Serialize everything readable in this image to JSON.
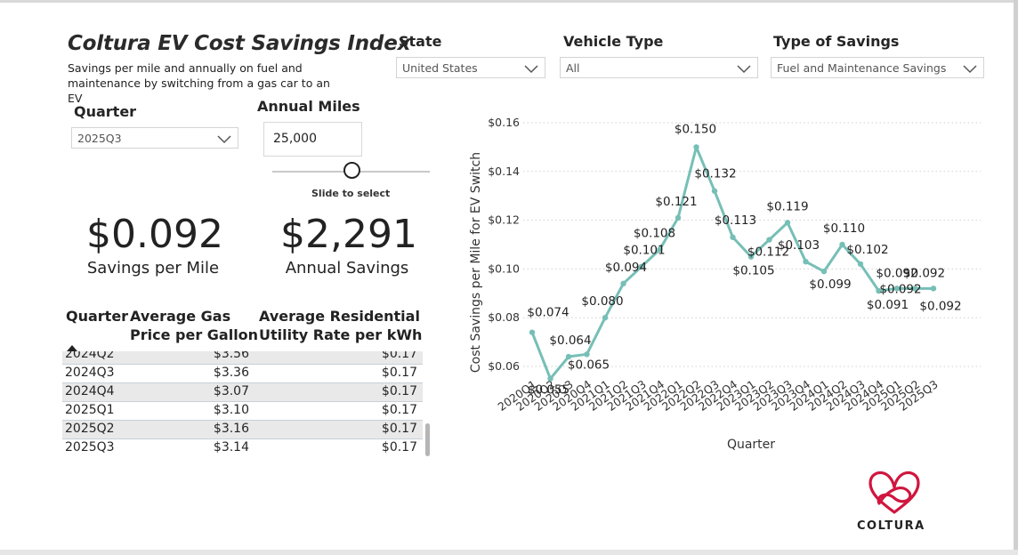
{
  "header": {
    "title": "Coltura EV Cost Savings Index",
    "subtitle": "Savings per mile and annually on fuel and maintenance by switching from a gas car to an EV"
  },
  "filters": {
    "state": {
      "label": "State",
      "value": "United States"
    },
    "vehicle_type": {
      "label": "Vehicle Type",
      "value": "All"
    },
    "savings_type": {
      "label": "Type of Savings",
      "value": "Fuel and Maintenance Savings"
    },
    "quarter": {
      "label": "Quarter",
      "value": "2025Q3"
    },
    "annual_miles": {
      "label": "Annual Miles",
      "value": "25,000",
      "hint": "Slide to select"
    }
  },
  "kpis": {
    "savings_per_mile": {
      "value": "$0.092",
      "label": "Savings per Mile"
    },
    "annual_savings": {
      "value": "$2,291",
      "label": "Annual Savings"
    }
  },
  "table": {
    "headers": {
      "quarter": "Quarter",
      "gas_line1": "Average Gas",
      "gas_line2": "Price per Gallon",
      "util_line1": "Average Residential",
      "util_line2": "Utility Rate per kWh"
    },
    "rows": [
      {
        "quarter": "2024Q2",
        "gas": "$3.56",
        "utility": "$0.17"
      },
      {
        "quarter": "2024Q3",
        "gas": "$3.36",
        "utility": "$0.17"
      },
      {
        "quarter": "2024Q4",
        "gas": "$3.07",
        "utility": "$0.17"
      },
      {
        "quarter": "2025Q1",
        "gas": "$3.10",
        "utility": "$0.17"
      },
      {
        "quarter": "2025Q2",
        "gas": "$3.16",
        "utility": "$0.17"
      },
      {
        "quarter": "2025Q3",
        "gas": "$3.14",
        "utility": "$0.17"
      }
    ]
  },
  "chart_data": {
    "type": "line",
    "xlabel": "Quarter",
    "ylabel": "Cost Savings per Mile for EV Switch",
    "ylim": [
      0.06,
      0.16
    ],
    "yticks": [
      "$0.06",
      "$0.08",
      "$0.10",
      "$0.12",
      "$0.14",
      "$0.16"
    ],
    "grid": "horizontal dotted",
    "color": "#76bfb6",
    "categories": [
      "2020Q1",
      "2020Q2",
      "2020Q3",
      "2020Q4",
      "2021Q1",
      "2021Q2",
      "2021Q3",
      "2021Q4",
      "2022Q1",
      "2022Q2",
      "2022Q3",
      "2022Q4",
      "2023Q1",
      "2023Q2",
      "2023Q3",
      "2023Q4",
      "2024Q1",
      "2024Q2",
      "2024Q3",
      "2024Q4",
      "2025Q1",
      "2025Q2",
      "2025Q3"
    ],
    "values": [
      0.074,
      0.055,
      0.064,
      0.065,
      0.08,
      0.094,
      0.101,
      0.108,
      0.121,
      0.15,
      0.132,
      0.113,
      0.105,
      0.112,
      0.119,
      0.103,
      0.099,
      0.11,
      0.102,
      0.091,
      0.092,
      0.092,
      0.092
    ],
    "labels": [
      "$0.074",
      "$0.055",
      "$0.064",
      "$0.065",
      "$0.080",
      "$0.094",
      "$0.101",
      "$0.108",
      "$0.121",
      "$0.150",
      "$0.132",
      "$0.113",
      "$0.105",
      "$0.112",
      "$0.119",
      "$0.103",
      "$0.099",
      "$0.110",
      "$0.102",
      "$0.091",
      "$0.092",
      "$0.092",
      "$0.092"
    ]
  },
  "logo": {
    "text": "COLTURA",
    "color": "#d0163f"
  }
}
